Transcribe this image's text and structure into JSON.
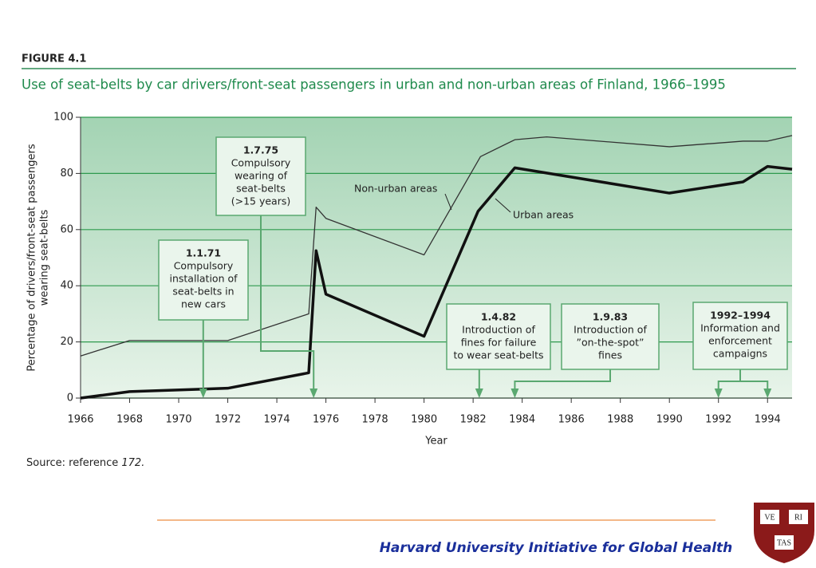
{
  "chart_data": {
    "type": "line",
    "figure_label": "FIGURE 4.1",
    "title": "Use of seat-belts by car drivers/front-seat passengers in urban and non-urban areas of Finland, 1966–1995",
    "y_label": [
      "Percentage of drivers/front-seat passengers",
      "wearing seat-belts"
    ],
    "x_label": "Year",
    "xlim": [
      1966,
      1995
    ],
    "xticks": [
      1966,
      1968,
      1970,
      1972,
      1974,
      1976,
      1978,
      1980,
      1982,
      1984,
      1986,
      1988,
      1990,
      1992,
      1994
    ],
    "ylim": [
      0,
      100
    ],
    "yticks": [
      0,
      20,
      40,
      60,
      80,
      100
    ],
    "grid": true,
    "series": [
      {
        "name": "Non-urban areas",
        "color": "#333333",
        "x": [
          1966,
          1968,
          1972,
          1975.3,
          1975.6,
          1976,
          1980,
          1982.3,
          1983.7,
          1985,
          1990,
          1993,
          1994,
          1995
        ],
        "values": [
          15,
          20.5,
          20.5,
          30,
          68,
          64,
          51,
          86,
          92,
          93,
          89.5,
          91.5,
          91.5,
          93.5
        ]
      },
      {
        "name": "Urban areas",
        "color": "#111111",
        "x": [
          1966,
          1968,
          1972,
          1975.3,
          1975.6,
          1976,
          1980,
          1982.2,
          1983.7,
          1990,
          1993,
          1994,
          1995
        ],
        "values": [
          0,
          2.3,
          3.5,
          9,
          52.5,
          37,
          22,
          66.5,
          82,
          73,
          77,
          82.5,
          81.5
        ]
      }
    ],
    "annotations": [
      {
        "date": "1.1.71",
        "lines": [
          "Compulsory",
          "installation of",
          "seat-belts in",
          "new cars"
        ],
        "x": [
          1971
        ]
      },
      {
        "date": "1.7.75",
        "lines": [
          "Compulsory",
          "wearing of",
          "seat-belts",
          "(>15 years)"
        ],
        "x": [
          1975.5
        ]
      },
      {
        "date": "1.4.82",
        "lines": [
          "Introduction of",
          "fines for failure",
          "to wear seat-belts"
        ],
        "x": [
          1982.25
        ]
      },
      {
        "date": "1.9.83",
        "lines": [
          "Introduction of",
          "”on-the-spot”",
          "fines"
        ],
        "x": [
          1983.7
        ]
      },
      {
        "date": "1992–1994",
        "lines": [
          "Information and",
          "enforcement",
          "campaigns"
        ],
        "x": [
          1992,
          1994
        ]
      }
    ],
    "source_prefix": "Source: reference ",
    "source_ref": "172.",
    "footer": "Harvard University Initiative for Global Health",
    "logo_texts": [
      "VE",
      "RI",
      "TAS"
    ]
  }
}
